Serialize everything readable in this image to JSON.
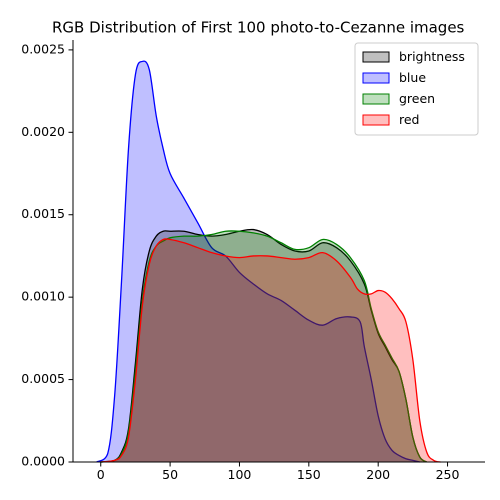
{
  "chart_data": {
    "type": "area",
    "title": "RGB Distribution of First 100 photo-to-Cezanne images",
    "xlabel": "",
    "ylabel": "",
    "xlim": [
      -20,
      277
    ],
    "ylim": [
      0,
      0.00256
    ],
    "xticks": [
      0,
      50,
      100,
      150,
      200,
      250
    ],
    "xtick_labels": [
      "0",
      "50",
      "100",
      "150",
      "200",
      "250"
    ],
    "yticks": [
      0,
      0.0005,
      0.001,
      0.0015,
      0.002,
      0.0025
    ],
    "ytick_labels": [
      "0.0000",
      "0.0005",
      "0.0010",
      "0.0015",
      "0.0020",
      "0.0025"
    ],
    "grid": false,
    "legend_position": "top-right",
    "series": [
      {
        "name": "blue",
        "color": "#0000ff",
        "x": [
          -3,
          5,
          10,
          15,
          20,
          25,
          30,
          35,
          40,
          45,
          50,
          60,
          70,
          80,
          90,
          100,
          110,
          120,
          130,
          140,
          150,
          160,
          170,
          180,
          187,
          190,
          195,
          200,
          205,
          210,
          215,
          220,
          225,
          230
        ],
        "y": [
          0,
          5e-05,
          0.0004,
          0.0011,
          0.0019,
          0.00235,
          0.00243,
          0.00238,
          0.0021,
          0.0019,
          0.00175,
          0.0016,
          0.00145,
          0.0013,
          0.00125,
          0.00115,
          0.00108,
          0.00102,
          0.00098,
          0.00092,
          0.00086,
          0.00083,
          0.00087,
          0.00088,
          0.00085,
          0.0007,
          0.0005,
          0.00028,
          0.00014,
          7e-05,
          4e-05,
          2e-05,
          1e-05,
          0
        ]
      },
      {
        "name": "brightness",
        "color": "#000000",
        "x": [
          0,
          10,
          15,
          20,
          25,
          30,
          35,
          40,
          45,
          50,
          60,
          70,
          80,
          90,
          100,
          110,
          120,
          130,
          140,
          150,
          160,
          170,
          180,
          190,
          195,
          200,
          205,
          210,
          215,
          220,
          225,
          230,
          235
        ],
        "y": [
          0,
          1e-05,
          6e-05,
          0.0002,
          0.0006,
          0.00105,
          0.00128,
          0.00137,
          0.0014,
          0.0014,
          0.0014,
          0.00138,
          0.00137,
          0.00138,
          0.0014,
          0.00141,
          0.00138,
          0.00132,
          0.00128,
          0.00128,
          0.00133,
          0.0013,
          0.00122,
          0.00108,
          0.00092,
          0.00078,
          0.0007,
          0.00062,
          0.00055,
          0.00038,
          0.00015,
          3e-05,
          0
        ]
      },
      {
        "name": "green",
        "color": "#008000",
        "x": [
          0,
          10,
          15,
          20,
          25,
          30,
          35,
          40,
          45,
          50,
          60,
          70,
          80,
          90,
          100,
          110,
          120,
          130,
          140,
          150,
          160,
          170,
          180,
          190,
          195,
          200,
          205,
          210,
          215,
          220,
          225,
          230,
          235
        ],
        "y": [
          0,
          1e-05,
          5e-05,
          0.00018,
          0.00055,
          0.00098,
          0.00122,
          0.00131,
          0.00134,
          0.00136,
          0.00137,
          0.00137,
          0.00138,
          0.0014,
          0.0014,
          0.00139,
          0.00137,
          0.00133,
          0.00129,
          0.0013,
          0.00135,
          0.00132,
          0.00124,
          0.0011,
          0.00093,
          0.00079,
          0.00071,
          0.00063,
          0.00055,
          0.00038,
          0.00015,
          3e-05,
          0
        ]
      },
      {
        "name": "red",
        "color": "#ff0000",
        "x": [
          0,
          10,
          15,
          20,
          25,
          30,
          35,
          40,
          45,
          50,
          60,
          70,
          80,
          90,
          100,
          110,
          120,
          130,
          140,
          150,
          160,
          170,
          180,
          185,
          190,
          195,
          200,
          205,
          210,
          215,
          220,
          225,
          230,
          235,
          240,
          245
        ],
        "y": [
          0,
          1e-05,
          4e-05,
          0.00015,
          0.0005,
          0.00095,
          0.0012,
          0.00131,
          0.00135,
          0.00135,
          0.00133,
          0.0013,
          0.00127,
          0.00125,
          0.00124,
          0.00125,
          0.00125,
          0.00124,
          0.00123,
          0.00124,
          0.00127,
          0.00122,
          0.00112,
          0.00105,
          0.00102,
          0.00102,
          0.00104,
          0.00103,
          0.00099,
          0.00093,
          0.00085,
          0.00062,
          0.00025,
          6e-05,
          1e-05,
          0
        ]
      }
    ],
    "legend_order": [
      "brightness",
      "blue",
      "green",
      "red"
    ]
  }
}
